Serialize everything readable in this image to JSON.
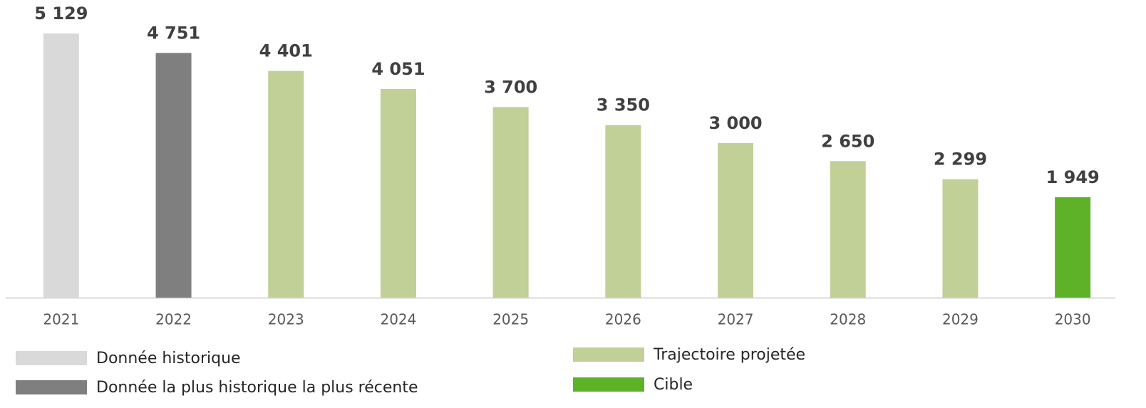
{
  "chart_data": {
    "type": "bar",
    "categories": [
      "2021",
      "2022",
      "2023",
      "2024",
      "2025",
      "2026",
      "2027",
      "2028",
      "2029",
      "2030"
    ],
    "series": [
      {
        "name": "Donnée historique",
        "color": "#d9d9d9",
        "values": [
          5129,
          null,
          null,
          null,
          null,
          null,
          null,
          null,
          null,
          null
        ],
        "value_labels": [
          "5 129",
          null,
          null,
          null,
          null,
          null,
          null,
          null,
          null,
          null
        ]
      },
      {
        "name": "Donnée la plus historique la plus récente",
        "color": "#7f7f7f",
        "values": [
          null,
          4751,
          null,
          null,
          null,
          null,
          null,
          null,
          null,
          null
        ],
        "value_labels": [
          null,
          "4 751",
          null,
          null,
          null,
          null,
          null,
          null,
          null,
          null
        ]
      },
      {
        "name": "Trajectoire projetée",
        "color": "#c0d097",
        "values": [
          null,
          null,
          4401,
          4051,
          3700,
          3350,
          3000,
          2650,
          2299,
          null
        ],
        "value_labels": [
          null,
          null,
          "4 401",
          "4 051",
          "3 700",
          "3 350",
          "3 000",
          "2 650",
          "2 299",
          null
        ]
      },
      {
        "name": "Cible",
        "color": "#5db227",
        "values": [
          null,
          null,
          null,
          null,
          null,
          null,
          null,
          null,
          null,
          1949
        ],
        "value_labels": [
          null,
          null,
          null,
          null,
          null,
          null,
          null,
          null,
          null,
          "1 949"
        ]
      }
    ]
  }
}
